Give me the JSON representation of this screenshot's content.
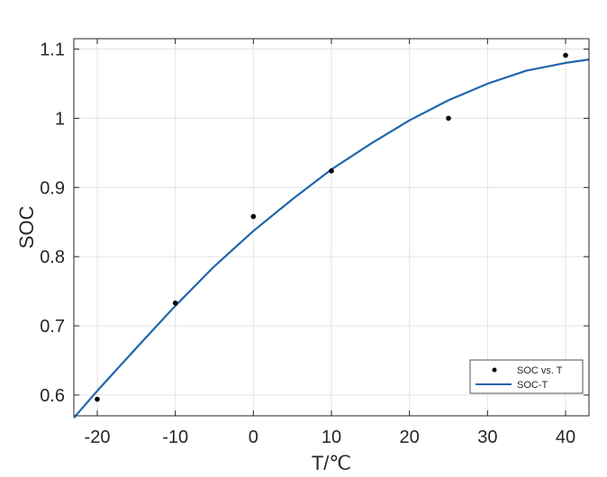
{
  "chart_data": {
    "type": "scatter",
    "xlabel": "T/℃",
    "ylabel": "SOC",
    "xlim": [
      -23,
      43
    ],
    "ylim": [
      0.57,
      1.115
    ],
    "xticks": [
      -20,
      -10,
      0,
      10,
      20,
      30,
      40
    ],
    "yticks": [
      0.6,
      0.7,
      0.8,
      0.9,
      1,
      1.1
    ],
    "xtick_labels": [
      "-20",
      "-10",
      "0",
      "10",
      "20",
      "30",
      "40"
    ],
    "ytick_labels": [
      "0.6",
      "0.7",
      "0.8",
      "0.9",
      "1",
      "1.1"
    ],
    "grid": true,
    "legend_position": "bottom-right",
    "series": [
      {
        "name": "SOC vs. T",
        "kind": "scatter",
        "color": "#000000",
        "x": [
          -20,
          -10,
          0,
          10,
          25,
          40
        ],
        "y": [
          0.594,
          0.733,
          0.858,
          0.924,
          1.0,
          1.091
        ]
      },
      {
        "name": "SOC-T",
        "kind": "line",
        "color": "#2166ac",
        "x": [
          -23,
          -20,
          -15,
          -10,
          -5,
          0,
          5,
          10,
          15,
          20,
          25,
          30,
          35,
          40,
          43
        ],
        "y": [
          0.567,
          0.606,
          0.668,
          0.729,
          0.786,
          0.837,
          0.883,
          0.926,
          0.963,
          0.997,
          1.026,
          1.05,
          1.069,
          1.08,
          1.085
        ]
      }
    ]
  }
}
